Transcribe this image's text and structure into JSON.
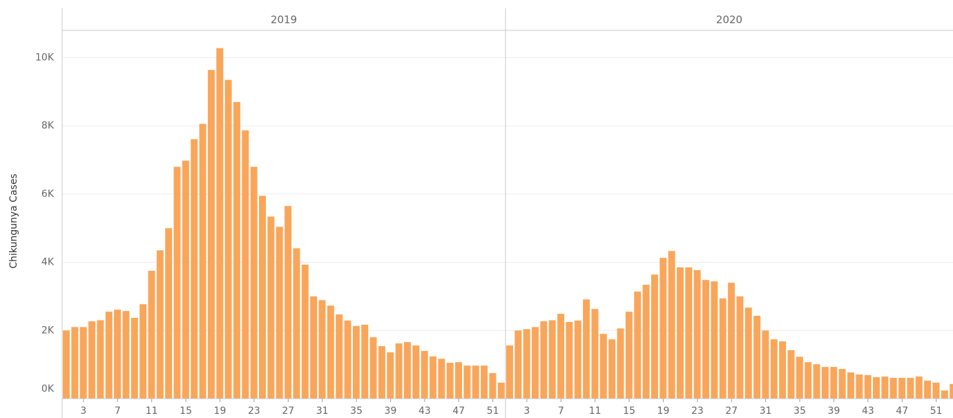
{
  "chart_data": [
    {
      "type": "bar",
      "title": "2019",
      "y_label": "Chikungunya Cases",
      "color": "#f9a65a",
      "ylim": [
        0,
        10800
      ],
      "yticks": [
        {
          "value": 0,
          "label": "0K"
        },
        {
          "value": 2000,
          "label": "2K"
        },
        {
          "value": 4000,
          "label": "4K"
        },
        {
          "value": 6000,
          "label": "6K"
        },
        {
          "value": 8000,
          "label": "8K"
        },
        {
          "value": 10000,
          "label": "10K"
        }
      ],
      "grid": true,
      "categories": [
        null,
        null,
        3,
        null,
        null,
        null,
        7,
        null,
        null,
        null,
        11,
        null,
        null,
        null,
        15,
        null,
        null,
        null,
        19,
        null,
        null,
        null,
        23,
        null,
        null,
        null,
        27,
        null,
        null,
        null,
        31,
        null,
        null,
        null,
        35,
        null,
        null,
        null,
        39,
        null,
        null,
        null,
        43,
        null,
        null,
        null,
        47,
        null,
        null,
        null,
        51,
        null
      ],
      "values": [
        2000,
        2100,
        2100,
        2270,
        2300,
        2550,
        2610,
        2570,
        2370,
        2770,
        3750,
        4350,
        5000,
        6800,
        6980,
        7610,
        8060,
        9640,
        10280,
        9350,
        8700,
        7870,
        6800,
        5950,
        5340,
        5040,
        5650,
        4410,
        3930,
        3000,
        2890,
        2730,
        2470,
        2290,
        2130,
        2170,
        1800,
        1540,
        1360,
        1620,
        1660,
        1560,
        1400,
        1240,
        1170,
        1050,
        1070,
        970,
        970,
        970,
        750,
        470
      ]
    },
    {
      "type": "bar",
      "title": "2020",
      "color": "#f9a65a",
      "categories": [
        null,
        null,
        3,
        null,
        null,
        null,
        7,
        null,
        null,
        null,
        11,
        null,
        null,
        null,
        15,
        null,
        null,
        null,
        19,
        null,
        null,
        null,
        23,
        null,
        null,
        null,
        27,
        null,
        null,
        null,
        31,
        null,
        null,
        null,
        35,
        null,
        null,
        null,
        39,
        null,
        null,
        null,
        43,
        null,
        null,
        null,
        47,
        null,
        null,
        null,
        51,
        null,
        null
      ],
      "values": [
        1560,
        2000,
        2040,
        2100,
        2270,
        2300,
        2490,
        2250,
        2290,
        2910,
        2630,
        1900,
        1740,
        2060,
        2550,
        3140,
        3340,
        3640,
        4130,
        4330,
        3850,
        3850,
        3770,
        3480,
        3440,
        2940,
        3400,
        3000,
        2670,
        2430,
        2000,
        1740,
        1680,
        1420,
        1230,
        1070,
        1010,
        930,
        930,
        870,
        770,
        710,
        690,
        630,
        650,
        610,
        610,
        610,
        650,
        530,
        470,
        240,
        430
      ]
    }
  ]
}
